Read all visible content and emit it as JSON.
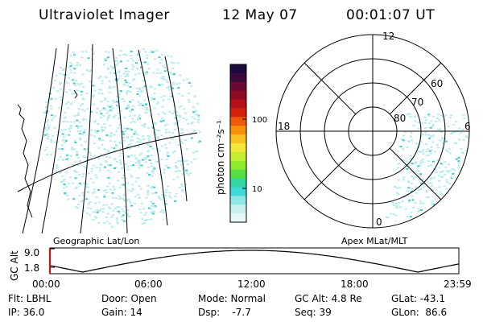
{
  "header": {
    "instrument": "Ultraviolet Imager",
    "date": "12 May 07",
    "time": "00:01:07 UT"
  },
  "colorbar": {
    "unit_label": "photon cm⁻²s⁻¹",
    "ticks": [
      "100",
      "10"
    ],
    "colors": [
      "#1b0b3e",
      "#3a0a3a",
      "#6a0a32",
      "#8e0a24",
      "#b5101a",
      "#d8200e",
      "#ef5a08",
      "#f7900a",
      "#f8c020",
      "#f2e838",
      "#c6ee30",
      "#90ea2e",
      "#58df44",
      "#31d6a4",
      "#3ddad8",
      "#8ee6e6",
      "#c8efef",
      "#e6f7f7"
    ]
  },
  "map_left": {
    "label": "Geographic Lat/Lon",
    "fill_color": "#b8ecec",
    "accent_color": "#3fcad0"
  },
  "map_right": {
    "label": "Apex MLat/MLT",
    "mlt_labels": [
      "12",
      "18",
      "6",
      "0"
    ],
    "lat_labels": [
      "60",
      "70",
      "80"
    ]
  },
  "timeline": {
    "axis_label": "GC Alt",
    "y_ticks": [
      "9.0",
      "1.8"
    ],
    "x_ticks": [
      "00:00",
      "06:00",
      "12:00",
      "18:00",
      "23:59"
    ],
    "marker_color": "#ff0000"
  },
  "status": {
    "col1": [
      "Flt: LBHL",
      "IP: 36.0"
    ],
    "col2": [
      "Door: Open",
      "Gain: 14"
    ],
    "col3": [
      "Mode: Normal",
      "Dsp:    -7.7"
    ],
    "col4": [
      "GC Alt: 4.8 Re",
      "Seq: 39"
    ],
    "col5": [
      "GLat: -43.1",
      "GLon:  86.6"
    ]
  }
}
